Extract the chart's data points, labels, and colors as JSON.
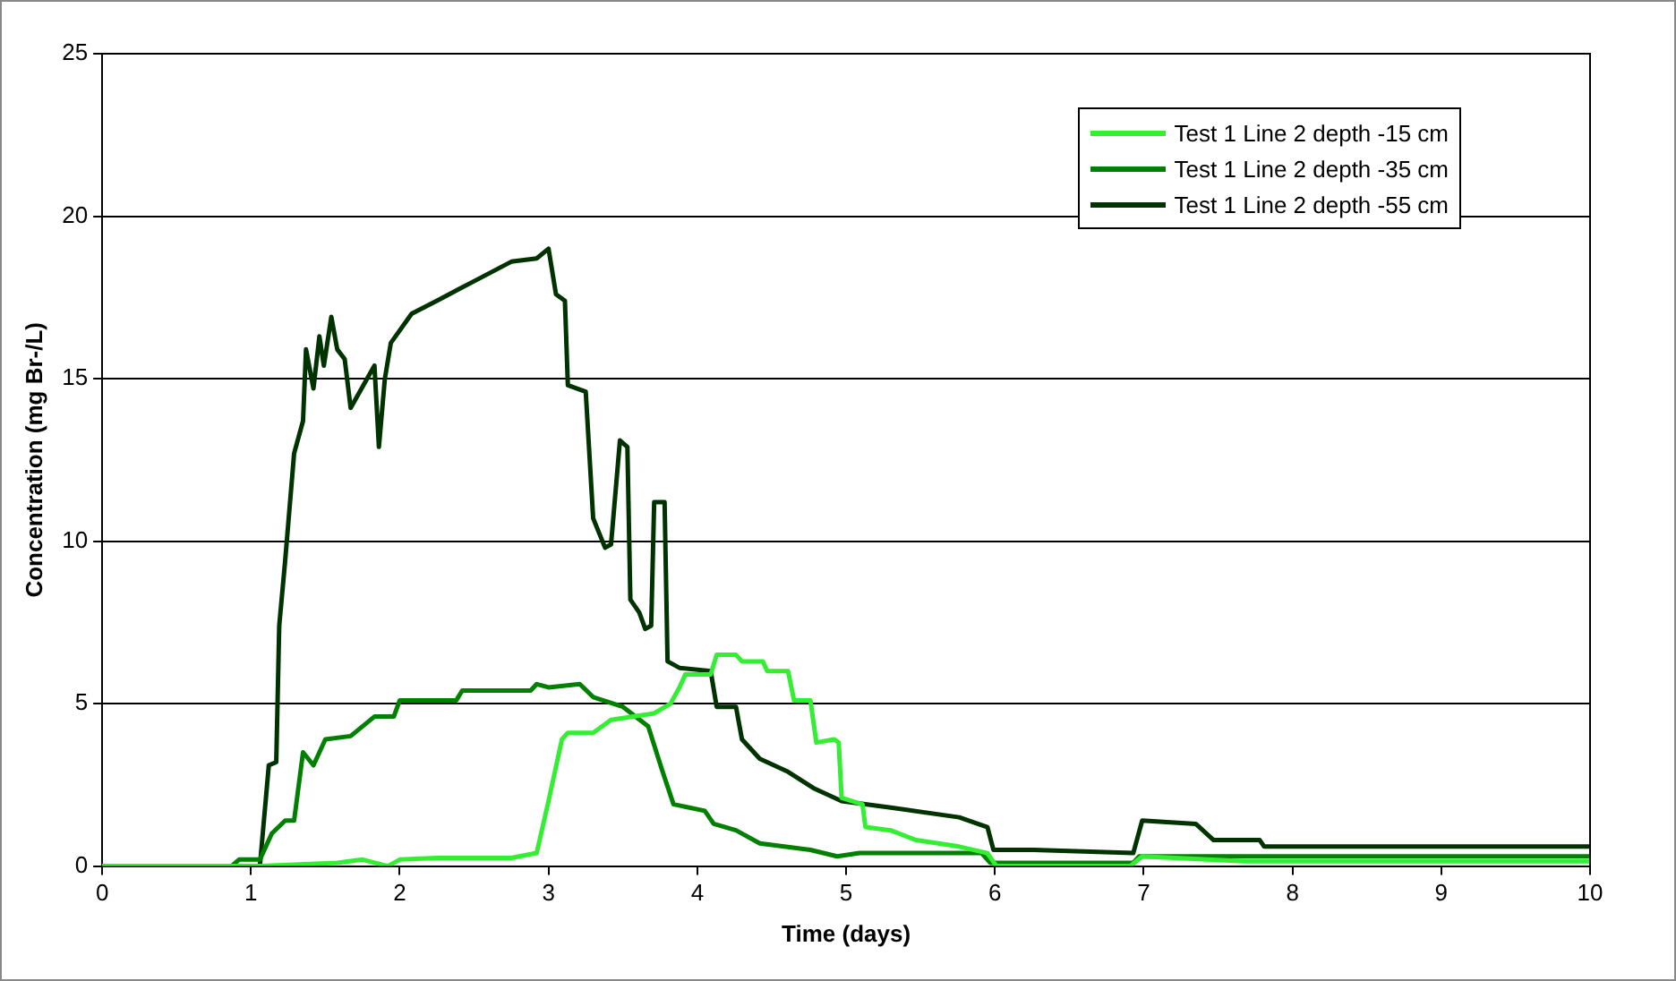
{
  "chart_data": {
    "type": "line",
    "xlabel": "Time (days)",
    "ylabel": "Concentration (mg Br-/L)",
    "xlim": [
      0,
      10
    ],
    "xticks": [
      0,
      1,
      2,
      3,
      4,
      5,
      6,
      7,
      8,
      9,
      10
    ],
    "ylim": [
      0,
      25
    ],
    "yticks": [
      0,
      5,
      10,
      15,
      20,
      25
    ],
    "grid": "y",
    "legend": "top right",
    "marker": "none",
    "line_style": "solid",
    "series": [
      {
        "name": "Test 1 Line 2 depth -15 cm",
        "color": "#33ee33",
        "x": [
          0,
          1.07,
          1.58,
          1.75,
          1.92,
          2.0,
          2.25,
          2.75,
          2.92,
          3.0,
          3.09,
          3.13,
          3.3,
          3.42,
          3.71,
          3.82,
          3.88,
          3.92,
          4.09,
          4.13,
          4.26,
          4.3,
          4.44,
          4.47,
          4.61,
          4.65,
          4.76,
          4.8,
          4.92,
          4.95,
          4.97,
          5.11,
          5.13,
          5.3,
          5.47,
          5.76,
          5.95,
          6.01,
          6.91,
          6.99,
          7.68,
          10
        ],
        "values": [
          0,
          0,
          0.1,
          0.2,
          0,
          0.2,
          0.25,
          0.25,
          0.4,
          2.0,
          3.9,
          4.1,
          4.1,
          4.5,
          4.7,
          5.0,
          5.5,
          5.9,
          5.9,
          6.5,
          6.5,
          6.3,
          6.3,
          6.0,
          6.0,
          5.1,
          5.1,
          3.8,
          3.9,
          3.8,
          2.1,
          1.9,
          1.2,
          1.1,
          0.8,
          0.6,
          0.4,
          0,
          0,
          0.3,
          0.15,
          0.15
        ]
      },
      {
        "name": "Test 1 Line 2 depth -35 cm",
        "color": "#008000",
        "x": [
          0,
          0.87,
          0.92,
          1.06,
          1.14,
          1.23,
          1.29,
          1.35,
          1.42,
          1.5,
          1.67,
          1.83,
          1.96,
          2.0,
          2.38,
          2.42,
          2.88,
          2.92,
          3.0,
          3.21,
          3.3,
          3.5,
          3.67,
          3.76,
          3.84,
          4.05,
          4.11,
          4.26,
          4.42,
          4.76,
          4.94,
          5.09,
          5.91,
          5.97,
          6.93,
          6.97,
          7.68,
          10
        ],
        "values": [
          0,
          0,
          0.2,
          0.2,
          1.0,
          1.4,
          1.4,
          3.5,
          3.1,
          3.9,
          4.0,
          4.6,
          4.6,
          5.1,
          5.1,
          5.4,
          5.4,
          5.6,
          5.5,
          5.6,
          5.2,
          4.9,
          4.3,
          3.0,
          1.9,
          1.7,
          1.3,
          1.1,
          0.7,
          0.5,
          0.3,
          0.4,
          0.4,
          0.1,
          0.1,
          0.3,
          0.3,
          0.3
        ]
      },
      {
        "name": "Test 1 Line 2 depth -55 cm",
        "color": "#003300",
        "x": [
          0,
          1.06,
          1.12,
          1.17,
          1.19,
          1.23,
          1.29,
          1.35,
          1.37,
          1.42,
          1.46,
          1.49,
          1.54,
          1.58,
          1.63,
          1.67,
          1.83,
          1.86,
          1.9,
          1.94,
          2.08,
          2.25,
          2.5,
          2.75,
          2.92,
          3.0,
          3.05,
          3.11,
          3.13,
          3.25,
          3.3,
          3.38,
          3.42,
          3.48,
          3.53,
          3.55,
          3.61,
          3.65,
          3.69,
          3.71,
          3.78,
          3.8,
          3.88,
          4.09,
          4.13,
          4.26,
          4.3,
          4.42,
          4.61,
          4.78,
          4.97,
          5.3,
          5.76,
          5.95,
          5.99,
          6.26,
          6.93,
          6.99,
          7.35,
          7.47,
          7.78,
          7.81,
          10
        ],
        "values": [
          0,
          0,
          3.1,
          3.2,
          7.4,
          9.4,
          12.7,
          13.7,
          15.9,
          14.7,
          16.3,
          15.4,
          16.9,
          15.9,
          15.6,
          14.1,
          15.4,
          12.9,
          15.0,
          16.1,
          17.0,
          17.4,
          18.0,
          18.6,
          18.7,
          19.0,
          17.6,
          17.4,
          14.8,
          14.6,
          10.7,
          9.8,
          9.9,
          13.1,
          12.9,
          8.2,
          7.8,
          7.3,
          7.4,
          11.2,
          11.2,
          6.3,
          6.1,
          6.0,
          4.9,
          4.9,
          3.9,
          3.3,
          2.9,
          2.4,
          2.0,
          1.8,
          1.5,
          1.2,
          0.5,
          0.5,
          0.4,
          1.4,
          1.3,
          0.8,
          0.8,
          0.6,
          0.6
        ]
      }
    ]
  }
}
